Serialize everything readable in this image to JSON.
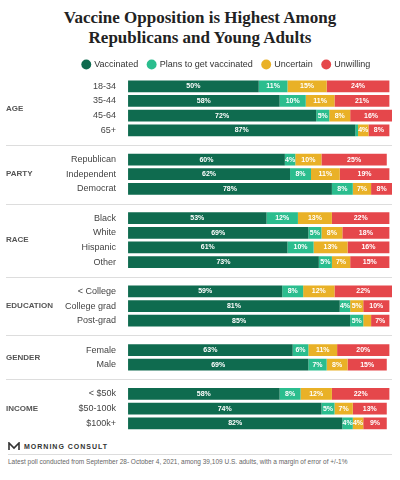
{
  "chart_data": {
    "type": "bar",
    "title": "Vaccine Opposition is Highest Among Republicans and Young Adults",
    "orientation": "horizontal",
    "stacked": true,
    "data_labels": true,
    "grid": false,
    "legend": "top",
    "tick_labels": "y",
    "xlim": [
      0,
      101
    ],
    "categories": [
      "18-34",
      "35-44",
      "45-64",
      "65+",
      "Republican",
      "Independent",
      "Democrat",
      "Black",
      "White",
      "Hispanic",
      "Other",
      "< College",
      "College grad",
      "Post-grad",
      "Female",
      "Male",
      "< $50k",
      "$50-100k",
      "$100k+"
    ],
    "groups": [
      {
        "name": "AGE",
        "categories": [
          "18-34",
          "35-44",
          "45-64",
          "65+"
        ]
      },
      {
        "name": "PARTY",
        "categories": [
          "Republican",
          "Independent",
          "Democrat"
        ]
      },
      {
        "name": "RACE",
        "categories": [
          "Black",
          "White",
          "Hispanic",
          "Other"
        ]
      },
      {
        "name": "EDUCATION",
        "categories": [
          "< College",
          "College grad",
          "Post-grad"
        ]
      },
      {
        "name": "GENDER",
        "categories": [
          "Female",
          "Male"
        ]
      },
      {
        "name": "INCOME",
        "categories": [
          "< $50k",
          "$50-100k",
          "$100k+"
        ]
      }
    ],
    "series": [
      {
        "name": "Vaccinated",
        "color": "#0f6b4f",
        "values": [
          50,
          58,
          72,
          87,
          60,
          62,
          78,
          53,
          69,
          61,
          73,
          59,
          81,
          85,
          63,
          69,
          58,
          74,
          82
        ],
        "value_labels": [
          "50%",
          "58%",
          "72%",
          "87%",
          "60%",
          "62%",
          "78%",
          "53%",
          "69%",
          "61%",
          "73%",
          "59%",
          "81%",
          "85%",
          "63%",
          "69%",
          "58%",
          "74%",
          "82%"
        ]
      },
      {
        "name": "Plans to get vaccinated",
        "color": "#2bbd8e",
        "values": [
          11,
          10,
          5,
          1,
          4,
          8,
          8,
          12,
          5,
          10,
          5,
          8,
          4,
          5,
          6,
          7,
          8,
          5,
          4
        ],
        "value_labels": [
          "11%",
          "10%",
          "5%",
          null,
          "4%",
          "8%",
          "8%",
          "12%",
          "5%",
          "10%",
          "5%",
          "8%",
          "4%",
          "5%",
          "6%",
          "7%",
          "8%",
          "5%",
          "4%"
        ]
      },
      {
        "name": "Uncertain",
        "color": "#e9b127",
        "values": [
          15,
          11,
          8,
          4,
          10,
          11,
          7,
          13,
          8,
          13,
          7,
          12,
          5,
          3,
          11,
          8,
          12,
          7,
          4
        ],
        "value_labels": [
          "15%",
          "11%",
          "8%",
          "4%",
          "10%",
          "11%",
          "7%",
          "13%",
          "8%",
          "13%",
          "7%",
          "12%",
          "5%",
          null,
          "11%",
          "8%",
          "12%",
          "7%",
          "4%"
        ]
      },
      {
        "name": "Unwilling",
        "color": "#e5474b",
        "values": [
          24,
          21,
          16,
          8,
          25,
          19,
          8,
          22,
          18,
          16,
          15,
          22,
          10,
          7,
          20,
          15,
          22,
          13,
          9
        ],
        "value_labels": [
          "24%",
          "21%",
          "16%",
          "8%",
          "25%",
          "19%",
          "8%",
          "22%",
          "18%",
          "16%",
          "15%",
          "22%",
          "10%",
          "7%",
          "20%",
          "15%",
          "22%",
          "13%",
          "9%"
        ]
      }
    ],
    "brand": "MORNING CONSULT",
    "note": "Latest poll conducted from September 28- October 4, 2021, among 39,109 U.S. adults, with a margin of error of +/-1%"
  }
}
